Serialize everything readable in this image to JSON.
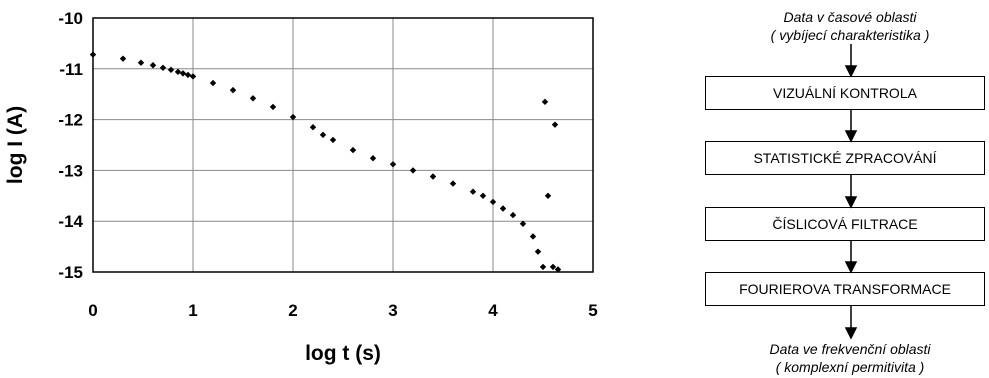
{
  "chart_data": {
    "type": "scatter",
    "title": "",
    "xlabel": "log t (s)",
    "ylabel": "log I (A)",
    "xlim": [
      0,
      5
    ],
    "ylim": [
      -15,
      -10
    ],
    "xticks": [
      "0",
      "1",
      "2",
      "3",
      "4",
      "5"
    ],
    "yticks": [
      "-10",
      "-11",
      "-12",
      "-13",
      "-14",
      "-15"
    ],
    "grid": true,
    "marker": "diamond",
    "color": "#000000",
    "series": [
      {
        "name": "",
        "points": [
          [
            0.0,
            -10.72
          ],
          [
            0.3,
            -10.8
          ],
          [
            0.48,
            -10.88
          ],
          [
            0.6,
            -10.93
          ],
          [
            0.7,
            -10.98
          ],
          [
            0.78,
            -11.02
          ],
          [
            0.85,
            -11.06
          ],
          [
            0.9,
            -11.09
          ],
          [
            0.95,
            -11.12
          ],
          [
            1.0,
            -11.15
          ],
          [
            1.2,
            -11.28
          ],
          [
            1.4,
            -11.42
          ],
          [
            1.6,
            -11.58
          ],
          [
            1.8,
            -11.75
          ],
          [
            2.0,
            -11.95
          ],
          [
            2.2,
            -12.15
          ],
          [
            2.3,
            -12.3
          ],
          [
            2.4,
            -12.4
          ],
          [
            2.6,
            -12.6
          ],
          [
            2.8,
            -12.76
          ],
          [
            3.0,
            -12.88
          ],
          [
            3.2,
            -13.0
          ],
          [
            3.4,
            -13.12
          ],
          [
            3.6,
            -13.26
          ],
          [
            3.8,
            -13.42
          ],
          [
            3.9,
            -13.5
          ],
          [
            4.0,
            -13.62
          ],
          [
            4.1,
            -13.75
          ],
          [
            4.2,
            -13.88
          ],
          [
            4.3,
            -14.05
          ],
          [
            4.4,
            -14.3
          ],
          [
            4.45,
            -14.6
          ],
          [
            4.5,
            -14.9
          ],
          [
            4.52,
            -11.65
          ],
          [
            4.55,
            -13.5
          ],
          [
            4.6,
            -14.9
          ],
          [
            4.62,
            -12.1
          ],
          [
            4.65,
            -14.95
          ]
        ]
      }
    ]
  },
  "flowchart": {
    "top_label_line1": "Data v časové oblasti",
    "top_label_line2": "( vybíjecí charakteristika )",
    "boxes": [
      "VIZUÁLNÍ KONTROLA",
      "STATISTICKÉ ZPRACOVÁNÍ",
      "ČÍSLICOVÁ FILTRACE",
      "FOURIEROVA TRANSFORMACE"
    ],
    "bottom_label_line1": "Data ve frekvenční oblasti",
    "bottom_label_line2": "( komplexní permitivita )"
  }
}
